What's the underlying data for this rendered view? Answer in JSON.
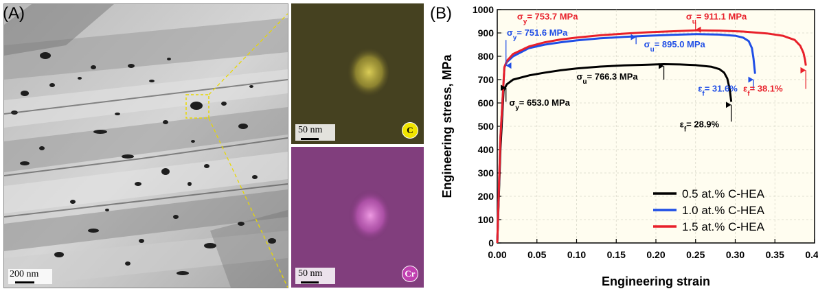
{
  "panel_a": {
    "label": "(A)",
    "tem_scale": "200 nm",
    "map_c": {
      "scale": "50 nm",
      "element": "C",
      "color": "#e8e000"
    },
    "map_cr": {
      "scale": "50 nm",
      "element": "Cr",
      "color": "#d040c0"
    }
  },
  "panel_b": {
    "label": "(B)"
  },
  "chart_data": {
    "type": "line",
    "xlabel": "Engineering strain",
    "ylabel": "Engineering stress, MPa",
    "xlim": [
      0.0,
      0.4
    ],
    "ylim": [
      0,
      1000
    ],
    "xticks": [
      "0.00",
      "0.05",
      "0.10",
      "0.15",
      "0.20",
      "0.25",
      "0.30",
      "0.35",
      "0.40"
    ],
    "yticks": [
      "0",
      "100",
      "200",
      "300",
      "400",
      "500",
      "600",
      "700",
      "800",
      "900",
      "1000"
    ],
    "legend_position": "bottom-right",
    "series": [
      {
        "name": "0.5 at.% C-HEA",
        "color": "#000000",
        "x": [
          0.0,
          0.004,
          0.008,
          0.012,
          0.02,
          0.04,
          0.06,
          0.08,
          0.1,
          0.13,
          0.16,
          0.19,
          0.21,
          0.23,
          0.25,
          0.27,
          0.28,
          0.286,
          0.29,
          0.293,
          0.295
        ],
        "y": [
          0,
          400,
          653,
          680,
          700,
          718,
          730,
          740,
          748,
          756,
          761,
          764,
          766.3,
          765,
          762,
          755,
          745,
          730,
          705,
          660,
          605
        ]
      },
      {
        "name": "1.0 at.% C-HEA",
        "color": "#1f4ee6",
        "x": [
          0.0,
          0.004,
          0.009,
          0.012,
          0.02,
          0.04,
          0.06,
          0.08,
          0.1,
          0.13,
          0.16,
          0.19,
          0.22,
          0.25,
          0.28,
          0.3,
          0.31,
          0.317,
          0.321,
          0.323,
          0.325
        ],
        "y": [
          0,
          450,
          751.6,
          775,
          800,
          835,
          850,
          860,
          868,
          877,
          883,
          888,
          892,
          895,
          893,
          888,
          880,
          865,
          835,
          790,
          725
        ]
      },
      {
        "name": "1.5 at.% C-HEA",
        "color": "#e8202a",
        "x": [
          0.0,
          0.004,
          0.009,
          0.012,
          0.02,
          0.04,
          0.06,
          0.08,
          0.1,
          0.13,
          0.16,
          0.19,
          0.22,
          0.25,
          0.28,
          0.31,
          0.34,
          0.36,
          0.375,
          0.382,
          0.386,
          0.388,
          0.389
        ],
        "y": [
          0,
          450,
          753.7,
          780,
          810,
          842,
          860,
          872,
          880,
          890,
          897,
          903,
          907,
          911.1,
          910,
          906,
          898,
          888,
          870,
          845,
          815,
          785,
          760
        ]
      }
    ],
    "annotations": [
      {
        "sym": "σ",
        "sub": "y",
        "text": "= 753.7 MPa",
        "color": "#e8202a",
        "x": 0.025,
        "y": 958,
        "arrow": null
      },
      {
        "sym": "σ",
        "sub": "u",
        "text": "= 911.1 MPa",
        "color": "#e8202a",
        "x": 0.238,
        "y": 958,
        "arrow": [
          0.25,
          945,
          0.25,
          914
        ]
      },
      {
        "sym": "σ",
        "sub": "y",
        "text": "= 751.6 MPa",
        "color": "#1f4ee6",
        "x": 0.012,
        "y": 888,
        "arrow": [
          0.011,
          870,
          0.011,
          760
        ]
      },
      {
        "sym": "σ",
        "sub": "u",
        "text": "= 895.0 MPa",
        "color": "#1f4ee6",
        "x": 0.185,
        "y": 838,
        "arrow": [
          0.175,
          852,
          0.175,
          882
        ]
      },
      {
        "sym": "σ",
        "sub": "u",
        "text": "= 766.3 MPa",
        "color": "#000000",
        "x": 0.1,
        "y": 700,
        "arrow": [
          0.21,
          700,
          0.21,
          758
        ]
      },
      {
        "sym": "σ",
        "sub": "y",
        "text": "= 653.0 MPa",
        "color": "#000000",
        "x": 0.015,
        "y": 588,
        "arrow": [
          0.011,
          605,
          0.011,
          665
        ]
      },
      {
        "sym": "ε",
        "sub": "f",
        "text": "= 31.6%",
        "color": "#1f4ee6",
        "x": 0.253,
        "y": 648,
        "arrow": [
          0.323,
          660,
          0.323,
          700
        ]
      },
      {
        "sym": "ε",
        "sub": "f",
        "text": "= 38.1%",
        "color": "#e8202a",
        "x": 0.31,
        "y": 648,
        "arrow": [
          0.389,
          660,
          0.389,
          740
        ]
      },
      {
        "sym": "ε",
        "sub": "f",
        "text": "= 28.9%",
        "color": "#000000",
        "x": 0.23,
        "y": 495,
        "arrow": [
          0.295,
          520,
          0.295,
          592
        ]
      }
    ]
  }
}
